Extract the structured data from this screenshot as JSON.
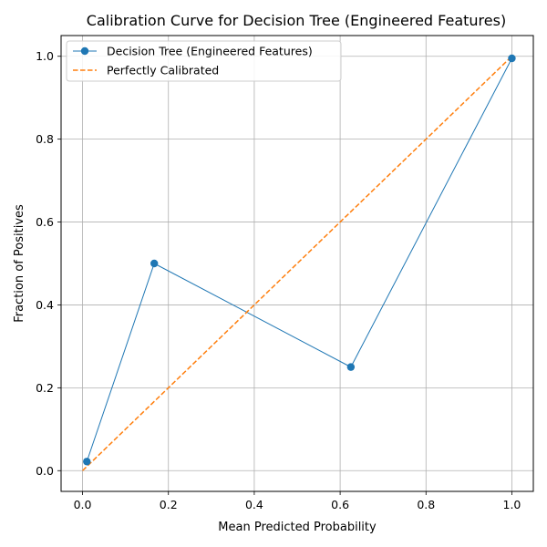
{
  "chart_data": {
    "type": "line",
    "title": "Calibration Curve for Decision Tree (Engineered Features)",
    "xlabel": "Mean Predicted Probability",
    "ylabel": "Fraction of Positives",
    "xlim": [
      -0.05,
      1.05
    ],
    "ylim": [
      -0.05,
      1.05
    ],
    "xticks": [
      "0.0",
      "0.2",
      "0.4",
      "0.6",
      "0.8",
      "1.0"
    ],
    "yticks": [
      "0.0",
      "0.2",
      "0.4",
      "0.6",
      "0.8",
      "1.0"
    ],
    "grid": true,
    "legend_position": "top-left",
    "series": [
      {
        "name": "Decision Tree (Engineered Features)",
        "color": "#1f77b4",
        "style": "solid-with-circle-markers",
        "x": [
          0.01,
          0.167,
          0.625,
          1.0
        ],
        "y": [
          0.022,
          0.5,
          0.25,
          0.995
        ]
      },
      {
        "name": "Perfectly Calibrated",
        "color": "#ff7f0e",
        "style": "dashed",
        "x": [
          0.0,
          1.0
        ],
        "y": [
          0.0,
          1.0
        ]
      }
    ]
  }
}
